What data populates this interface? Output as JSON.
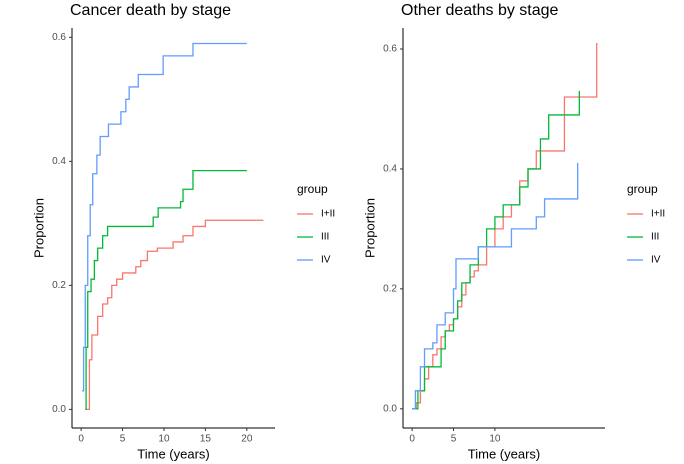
{
  "chart_data": [
    {
      "type": "step",
      "title": "Cancer death by stage",
      "xlabel": "Time (years)",
      "ylabel": "Proportion",
      "legend_title": "group",
      "xlim": [
        -1.1,
        23.4
      ],
      "ylim": [
        -0.03,
        0.615
      ],
      "xticks": [
        0,
        5,
        10,
        15,
        20
      ],
      "yticks": [
        {
          "value": 0,
          "label": "0.0"
        },
        {
          "value": 0.2,
          "label": "0.2"
        },
        {
          "value": 0.4,
          "label": "0.4"
        },
        {
          "value": 0.6,
          "label": "0.6"
        }
      ],
      "series": [
        {
          "name": "I+II",
          "color": "#F8766D",
          "x": [
            0.6,
            1.0,
            1.3,
            2.0,
            2.6,
            3.2,
            3.7,
            4.3,
            5.0,
            6.6,
            7.2,
            8.0,
            9.2,
            11.1,
            12.3,
            13.5,
            15.0,
            22
          ],
          "values": [
            0,
            0.08,
            0.12,
            0.15,
            0.17,
            0.18,
            0.2,
            0.21,
            0.22,
            0.23,
            0.24,
            0.255,
            0.26,
            0.27,
            0.28,
            0.295,
            0.305,
            0.305
          ]
        },
        {
          "name": "III",
          "color": "#00BA38",
          "x": [
            0.5,
            0.6,
            0.8,
            1.2,
            1.6,
            2.0,
            2.6,
            3.2,
            8.7,
            9.3,
            12,
            12.3,
            13.5,
            20
          ],
          "values": [
            0,
            0.1,
            0.19,
            0.21,
            0.24,
            0.26,
            0.28,
            0.295,
            0.31,
            0.325,
            0.335,
            0.355,
            0.385,
            0.385
          ]
        },
        {
          "name": "IV",
          "color": "#619CFF",
          "x": [
            0.1,
            0.3,
            0.5,
            0.8,
            1.1,
            1.4,
            1.9,
            2.3,
            3.3,
            4.8,
            5.4,
            5.8,
            6.9,
            9.9,
            13.5,
            20
          ],
          "values": [
            0.03,
            0.1,
            0.2,
            0.28,
            0.33,
            0.38,
            0.41,
            0.44,
            0.46,
            0.48,
            0.5,
            0.52,
            0.54,
            0.57,
            0.59,
            0.59
          ]
        }
      ]
    },
    {
      "type": "step",
      "title": "Other deaths by stage",
      "xlabel": "Time (years)",
      "ylabel": "Proportion",
      "legend_title": "group",
      "xlim": [
        -1.1,
        23.3
      ],
      "ylim": [
        -0.032,
        0.635
      ],
      "xticks": [
        0,
        5,
        10
      ],
      "yticks": [
        {
          "value": 0,
          "label": "0.0"
        },
        {
          "value": 0.2,
          "label": "0.2"
        },
        {
          "value": 0.4,
          "label": "0.4"
        },
        {
          "value": 0.6,
          "label": "0.6"
        }
      ],
      "series": [
        {
          "name": "I+II",
          "color": "#F8766D",
          "x": [
            0,
            0.5,
            1,
            1.5,
            2,
            2.5,
            3,
            3.5,
            4,
            4.5,
            5,
            5.5,
            6,
            6.5,
            7,
            7.5,
            8,
            9,
            10,
            11,
            12,
            13,
            14,
            15,
            16,
            18.4,
            22.3
          ],
          "values": [
            0,
            0.01,
            0.03,
            0.05,
            0.07,
            0.09,
            0.1,
            0.12,
            0.13,
            0.14,
            0.15,
            0.17,
            0.19,
            0.21,
            0.22,
            0.23,
            0.24,
            0.27,
            0.3,
            0.32,
            0.34,
            0.38,
            0.4,
            0.43,
            0.43,
            0.52,
            0.61
          ]
        },
        {
          "name": "III",
          "color": "#00BA38",
          "x": [
            0,
            0.7,
            1.5,
            3,
            3.5,
            4,
            5,
            5.5,
            6,
            7,
            8,
            9,
            10,
            11,
            12,
            13,
            14,
            15.5,
            16.5,
            17.7,
            20.2
          ],
          "values": [
            0,
            0.03,
            0.07,
            0.07,
            0.1,
            0.13,
            0.15,
            0.18,
            0.21,
            0.24,
            0.27,
            0.3,
            0.32,
            0.34,
            0.34,
            0.37,
            0.4,
            0.45,
            0.49,
            0.49,
            0.53
          ]
        },
        {
          "name": "IV",
          "color": "#619CFF",
          "x": [
            0,
            0.4,
            1,
            1.5,
            2.5,
            3,
            4,
            5,
            5.3,
            6.5,
            8,
            10,
            12,
            14,
            15,
            16,
            20
          ],
          "values": [
            0,
            0.03,
            0.07,
            0.1,
            0.11,
            0.14,
            0.16,
            0.2,
            0.25,
            0.25,
            0.27,
            0.27,
            0.3,
            0.3,
            0.32,
            0.35,
            0.41
          ]
        }
      ]
    }
  ]
}
